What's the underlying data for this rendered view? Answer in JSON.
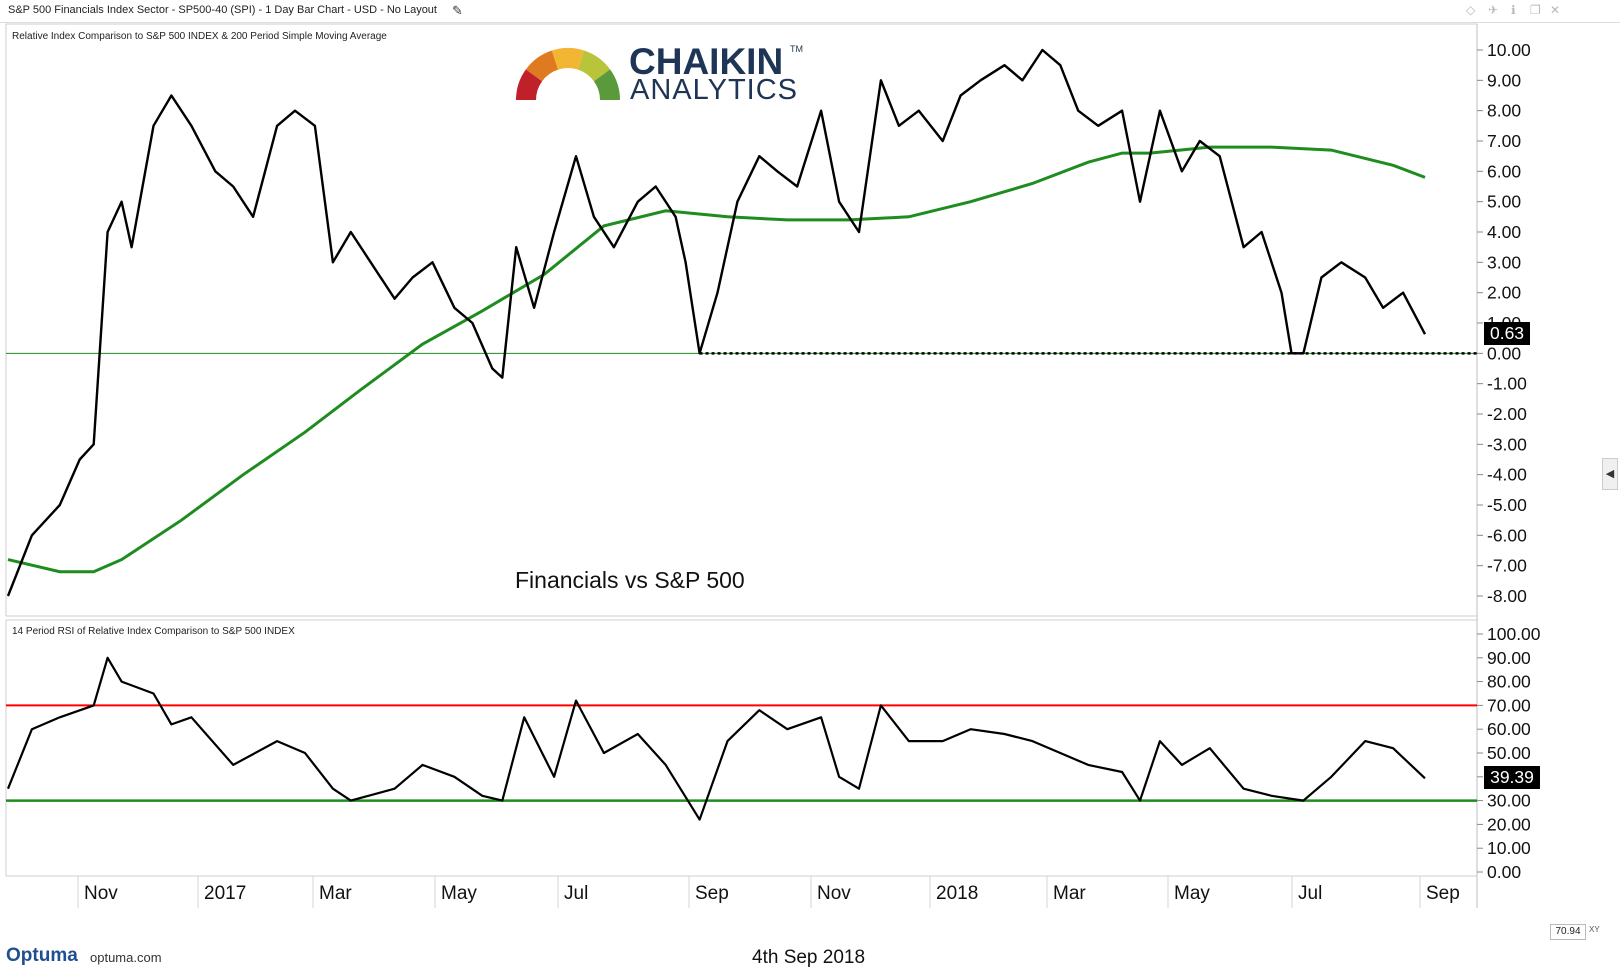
{
  "window": {
    "title": "S&P 500 Financials Index Sector - SP500-40 (SPI) - 1 Day Bar Chart - USD - No Layout",
    "icons": [
      "pencil-icon",
      "diamond-icon",
      "pin-icon",
      "info-icon",
      "restore-icon",
      "close-icon"
    ]
  },
  "logo": {
    "line1": "CHAIKIN",
    "tm": "TM",
    "line2": "ANALYTICS",
    "gauge_colors": [
      "#c0202a",
      "#e07a20",
      "#f2b632",
      "#b8c43a",
      "#5a9a3a"
    ]
  },
  "colors": {
    "price": "#000000",
    "sma": "#1e8c1e",
    "overbought": "#ff0000",
    "oversold": "#1e8c1e",
    "zero_line": "#1e8c1e"
  },
  "chart_data": [
    {
      "type": "line",
      "title": "Relative Index Comparison to S&P 500 INDEX & 200 Period Simple Moving Average",
      "annotation": "Financials vs S&P 500",
      "ylim": [
        -8.5,
        10.5
      ],
      "yticks": [
        "10.00",
        "9.00",
        "8.00",
        "7.00",
        "6.00",
        "5.00",
        "4.00",
        "3.00",
        "2.00",
        "1.00",
        "0.00",
        "-1.00",
        "-2.00",
        "-3.00",
        "-4.00",
        "-5.00",
        "-6.00",
        "-7.00",
        "-8.00"
      ],
      "last_value": "0.63",
      "series": [
        {
          "name": "Relative Index",
          "x": [
            "2016-09-19",
            "2016-10-01",
            "2016-10-15",
            "2016-10-25",
            "2016-11-01",
            "2016-11-08",
            "2016-11-15",
            "2016-11-20",
            "2016-12-01",
            "2016-12-10",
            "2016-12-20",
            "2017-01-01",
            "2017-01-10",
            "2017-01-20",
            "2017-02-01",
            "2017-02-10",
            "2017-02-20",
            "2017-03-01",
            "2017-03-10",
            "2017-03-20",
            "2017-04-01",
            "2017-04-10",
            "2017-04-20",
            "2017-05-01",
            "2017-05-10",
            "2017-05-20",
            "2017-05-25",
            "2017-06-01",
            "2017-06-10",
            "2017-06-20",
            "2017-07-01",
            "2017-07-10",
            "2017-07-20",
            "2017-08-01",
            "2017-08-10",
            "2017-08-20",
            "2017-08-25",
            "2017-09-01",
            "2017-09-10",
            "2017-09-20",
            "2017-10-01",
            "2017-10-10",
            "2017-10-20",
            "2017-11-01",
            "2017-11-10",
            "2017-11-20",
            "2017-12-01",
            "2017-12-10",
            "2017-12-20",
            "2018-01-01",
            "2018-01-10",
            "2018-01-20",
            "2018-02-01",
            "2018-02-10",
            "2018-02-20",
            "2018-03-01",
            "2018-03-10",
            "2018-03-20",
            "2018-04-01",
            "2018-04-10",
            "2018-04-20",
            "2018-05-01",
            "2018-05-10",
            "2018-05-20",
            "2018-06-01",
            "2018-06-10",
            "2018-06-20",
            "2018-06-25",
            "2018-07-01",
            "2018-07-10",
            "2018-07-20",
            "2018-08-01",
            "2018-08-10",
            "2018-08-20",
            "2018-08-31"
          ],
          "y": [
            -8.0,
            -6.0,
            -5.0,
            -3.5,
            -3.0,
            4.0,
            5.0,
            3.5,
            7.5,
            8.5,
            7.5,
            6.0,
            5.5,
            4.5,
            7.5,
            8.0,
            7.5,
            3.0,
            4.0,
            3.0,
            1.8,
            2.5,
            3.0,
            1.5,
            1.0,
            -0.5,
            -0.8,
            3.5,
            1.5,
            4.0,
            6.5,
            4.5,
            3.5,
            5.0,
            5.5,
            4.5,
            3.0,
            0.0,
            2.0,
            5.0,
            6.5,
            6.0,
            5.5,
            8.0,
            5.0,
            4.0,
            9.0,
            7.5,
            8.0,
            7.0,
            8.5,
            9.0,
            9.5,
            9.0,
            10.0,
            9.5,
            8.0,
            7.5,
            8.0,
            5.0,
            8.0,
            6.0,
            7.0,
            6.5,
            3.5,
            4.0,
            2.0,
            0.0,
            0.0,
            2.5,
            3.0,
            2.5,
            1.5,
            2.0,
            0.63
          ]
        },
        {
          "name": "200 Period Simple Moving Average",
          "x": [
            "2016-09-19",
            "2016-10-15",
            "2016-11-01",
            "2016-11-15",
            "2016-12-15",
            "2017-01-15",
            "2017-02-15",
            "2017-03-15",
            "2017-04-15",
            "2017-05-15",
            "2017-06-15",
            "2017-07-15",
            "2017-08-15",
            "2017-09-15",
            "2017-10-15",
            "2017-11-15",
            "2017-12-15",
            "2018-01-15",
            "2018-02-15",
            "2018-03-15",
            "2018-04-01",
            "2018-04-15",
            "2018-05-15",
            "2018-06-15",
            "2018-07-15",
            "2018-08-15",
            "2018-08-31"
          ],
          "y": [
            -6.8,
            -7.2,
            -7.2,
            -6.8,
            -5.5,
            -4.0,
            -2.6,
            -1.2,
            0.3,
            1.4,
            2.6,
            4.2,
            4.7,
            4.5,
            4.4,
            4.4,
            4.5,
            5.0,
            5.6,
            6.3,
            6.6,
            6.6,
            6.8,
            6.8,
            6.7,
            6.2,
            5.8
          ]
        }
      ]
    },
    {
      "type": "line",
      "title": "14 Period RSI of Relative Index Comparison to S&P 500 INDEX",
      "ylim": [
        0,
        100
      ],
      "yticks": [
        "100.00",
        "90.00",
        "80.00",
        "70.00",
        "60.00",
        "50.00",
        "40.00",
        "30.00",
        "20.00",
        "10.00",
        "0.00"
      ],
      "overbought": 70,
      "oversold": 30,
      "last_value": "39.39",
      "series": [
        {
          "name": "RSI",
          "x": [
            "2016-09-19",
            "2016-10-01",
            "2016-10-15",
            "2016-11-01",
            "2016-11-08",
            "2016-11-15",
            "2016-12-01",
            "2016-12-10",
            "2016-12-20",
            "2017-01-10",
            "2017-02-01",
            "2017-02-15",
            "2017-03-01",
            "2017-03-10",
            "2017-04-01",
            "2017-04-15",
            "2017-05-01",
            "2017-05-15",
            "2017-05-25",
            "2017-06-05",
            "2017-06-20",
            "2017-07-01",
            "2017-07-15",
            "2017-08-01",
            "2017-08-15",
            "2017-09-01",
            "2017-09-15",
            "2017-10-01",
            "2017-10-15",
            "2017-11-01",
            "2017-11-10",
            "2017-11-20",
            "2017-12-01",
            "2017-12-15",
            "2018-01-01",
            "2018-01-15",
            "2018-02-01",
            "2018-02-15",
            "2018-03-01",
            "2018-03-15",
            "2018-04-01",
            "2018-04-10",
            "2018-04-20",
            "2018-05-01",
            "2018-05-15",
            "2018-06-01",
            "2018-06-15",
            "2018-07-01",
            "2018-07-15",
            "2018-08-01",
            "2018-08-15",
            "2018-08-31"
          ],
          "y": [
            35,
            60,
            65,
            70,
            90,
            80,
            75,
            62,
            65,
            45,
            55,
            50,
            35,
            30,
            35,
            45,
            40,
            32,
            30,
            65,
            40,
            72,
            50,
            58,
            45,
            22,
            55,
            68,
            60,
            65,
            40,
            35,
            70,
            55,
            55,
            60,
            58,
            55,
            50,
            45,
            42,
            30,
            55,
            45,
            52,
            35,
            32,
            30,
            40,
            55,
            52,
            39.39
          ]
        }
      ]
    }
  ],
  "x_axis": {
    "labels": [
      "Nov",
      "2017",
      "Mar",
      "May",
      "Jul",
      "Sep",
      "Nov",
      "2018",
      "Mar",
      "May",
      "Jul",
      "Sep"
    ]
  },
  "footer": {
    "brand": "Optuma",
    "url": "optuma.com",
    "date": "4th Sep 2018",
    "coord": "70.94",
    "xy": "XY"
  }
}
